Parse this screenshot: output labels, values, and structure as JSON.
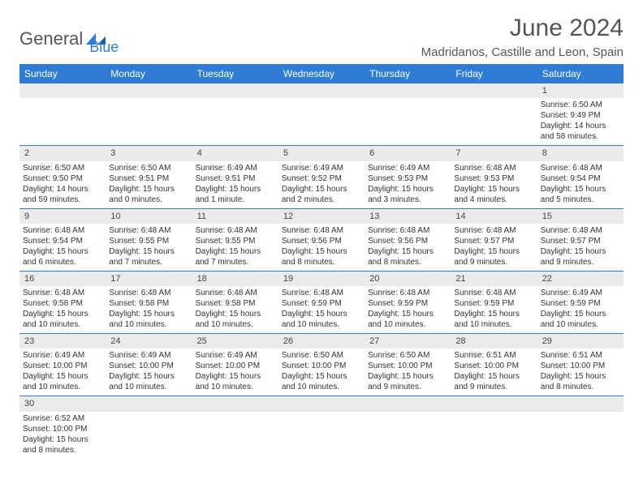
{
  "logo": {
    "g": "General",
    "b": "Blue"
  },
  "title": "June 2024",
  "location": "Madridanos, Castille and Leon, Spain",
  "weekdays": [
    "Sunday",
    "Monday",
    "Tuesday",
    "Wednesday",
    "Thursday",
    "Friday",
    "Saturday"
  ],
  "colors": {
    "header_bg": "#2e7cd6",
    "daynum_bg": "#ebebeb",
    "text": "#333333"
  },
  "weeks": [
    [
      null,
      null,
      null,
      null,
      null,
      null,
      {
        "n": "1",
        "sr": "Sunrise: 6:50 AM",
        "ss": "Sunset: 9:49 PM",
        "d1": "Daylight: 14 hours",
        "d2": "and 58 minutes."
      }
    ],
    [
      {
        "n": "2",
        "sr": "Sunrise: 6:50 AM",
        "ss": "Sunset: 9:50 PM",
        "d1": "Daylight: 14 hours",
        "d2": "and 59 minutes."
      },
      {
        "n": "3",
        "sr": "Sunrise: 6:50 AM",
        "ss": "Sunset: 9:51 PM",
        "d1": "Daylight: 15 hours",
        "d2": "and 0 minutes."
      },
      {
        "n": "4",
        "sr": "Sunrise: 6:49 AM",
        "ss": "Sunset: 9:51 PM",
        "d1": "Daylight: 15 hours",
        "d2": "and 1 minute."
      },
      {
        "n": "5",
        "sr": "Sunrise: 6:49 AM",
        "ss": "Sunset: 9:52 PM",
        "d1": "Daylight: 15 hours",
        "d2": "and 2 minutes."
      },
      {
        "n": "6",
        "sr": "Sunrise: 6:49 AM",
        "ss": "Sunset: 9:53 PM",
        "d1": "Daylight: 15 hours",
        "d2": "and 3 minutes."
      },
      {
        "n": "7",
        "sr": "Sunrise: 6:48 AM",
        "ss": "Sunset: 9:53 PM",
        "d1": "Daylight: 15 hours",
        "d2": "and 4 minutes."
      },
      {
        "n": "8",
        "sr": "Sunrise: 6:48 AM",
        "ss": "Sunset: 9:54 PM",
        "d1": "Daylight: 15 hours",
        "d2": "and 5 minutes."
      }
    ],
    [
      {
        "n": "9",
        "sr": "Sunrise: 6:48 AM",
        "ss": "Sunset: 9:54 PM",
        "d1": "Daylight: 15 hours",
        "d2": "and 6 minutes."
      },
      {
        "n": "10",
        "sr": "Sunrise: 6:48 AM",
        "ss": "Sunset: 9:55 PM",
        "d1": "Daylight: 15 hours",
        "d2": "and 7 minutes."
      },
      {
        "n": "11",
        "sr": "Sunrise: 6:48 AM",
        "ss": "Sunset: 9:55 PM",
        "d1": "Daylight: 15 hours",
        "d2": "and 7 minutes."
      },
      {
        "n": "12",
        "sr": "Sunrise: 6:48 AM",
        "ss": "Sunset: 9:56 PM",
        "d1": "Daylight: 15 hours",
        "d2": "and 8 minutes."
      },
      {
        "n": "13",
        "sr": "Sunrise: 6:48 AM",
        "ss": "Sunset: 9:56 PM",
        "d1": "Daylight: 15 hours",
        "d2": "and 8 minutes."
      },
      {
        "n": "14",
        "sr": "Sunrise: 6:48 AM",
        "ss": "Sunset: 9:57 PM",
        "d1": "Daylight: 15 hours",
        "d2": "and 9 minutes."
      },
      {
        "n": "15",
        "sr": "Sunrise: 6:48 AM",
        "ss": "Sunset: 9:57 PM",
        "d1": "Daylight: 15 hours",
        "d2": "and 9 minutes."
      }
    ],
    [
      {
        "n": "16",
        "sr": "Sunrise: 6:48 AM",
        "ss": "Sunset: 9:58 PM",
        "d1": "Daylight: 15 hours",
        "d2": "and 10 minutes."
      },
      {
        "n": "17",
        "sr": "Sunrise: 6:48 AM",
        "ss": "Sunset: 9:58 PM",
        "d1": "Daylight: 15 hours",
        "d2": "and 10 minutes."
      },
      {
        "n": "18",
        "sr": "Sunrise: 6:48 AM",
        "ss": "Sunset: 9:58 PM",
        "d1": "Daylight: 15 hours",
        "d2": "and 10 minutes."
      },
      {
        "n": "19",
        "sr": "Sunrise: 6:48 AM",
        "ss": "Sunset: 9:59 PM",
        "d1": "Daylight: 15 hours",
        "d2": "and 10 minutes."
      },
      {
        "n": "20",
        "sr": "Sunrise: 6:48 AM",
        "ss": "Sunset: 9:59 PM",
        "d1": "Daylight: 15 hours",
        "d2": "and 10 minutes."
      },
      {
        "n": "21",
        "sr": "Sunrise: 6:48 AM",
        "ss": "Sunset: 9:59 PM",
        "d1": "Daylight: 15 hours",
        "d2": "and 10 minutes."
      },
      {
        "n": "22",
        "sr": "Sunrise: 6:49 AM",
        "ss": "Sunset: 9:59 PM",
        "d1": "Daylight: 15 hours",
        "d2": "and 10 minutes."
      }
    ],
    [
      {
        "n": "23",
        "sr": "Sunrise: 6:49 AM",
        "ss": "Sunset: 10:00 PM",
        "d1": "Daylight: 15 hours",
        "d2": "and 10 minutes."
      },
      {
        "n": "24",
        "sr": "Sunrise: 6:49 AM",
        "ss": "Sunset: 10:00 PM",
        "d1": "Daylight: 15 hours",
        "d2": "and 10 minutes."
      },
      {
        "n": "25",
        "sr": "Sunrise: 6:49 AM",
        "ss": "Sunset: 10:00 PM",
        "d1": "Daylight: 15 hours",
        "d2": "and 10 minutes."
      },
      {
        "n": "26",
        "sr": "Sunrise: 6:50 AM",
        "ss": "Sunset: 10:00 PM",
        "d1": "Daylight: 15 hours",
        "d2": "and 10 minutes."
      },
      {
        "n": "27",
        "sr": "Sunrise: 6:50 AM",
        "ss": "Sunset: 10:00 PM",
        "d1": "Daylight: 15 hours",
        "d2": "and 9 minutes."
      },
      {
        "n": "28",
        "sr": "Sunrise: 6:51 AM",
        "ss": "Sunset: 10:00 PM",
        "d1": "Daylight: 15 hours",
        "d2": "and 9 minutes."
      },
      {
        "n": "29",
        "sr": "Sunrise: 6:51 AM",
        "ss": "Sunset: 10:00 PM",
        "d1": "Daylight: 15 hours",
        "d2": "and 8 minutes."
      }
    ],
    [
      {
        "n": "30",
        "sr": "Sunrise: 6:52 AM",
        "ss": "Sunset: 10:00 PM",
        "d1": "Daylight: 15 hours",
        "d2": "and 8 minutes."
      },
      null,
      null,
      null,
      null,
      null,
      null
    ]
  ]
}
